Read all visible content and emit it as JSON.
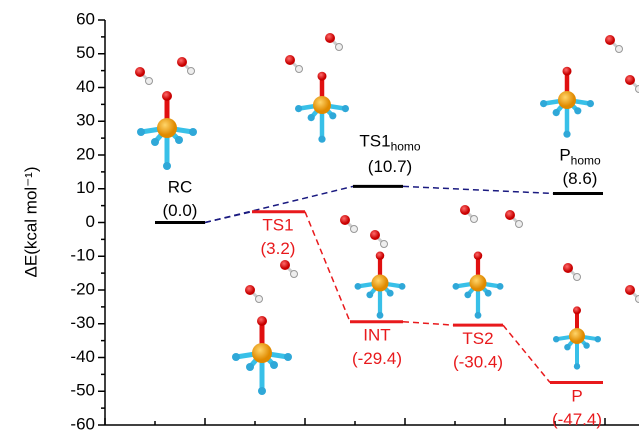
{
  "chart_data": {
    "type": "energy-profile",
    "y_label": "ΔE(kcal mol⁻¹)",
    "ylim": [
      -60,
      60
    ],
    "yticks": [
      -60,
      -50,
      -40,
      -30,
      -20,
      -10,
      0,
      10,
      20,
      30,
      40,
      50,
      60
    ],
    "levels": [
      {
        "label": "RC",
        "value": 0.0,
        "value_label": "(0.0)",
        "color": "#000000"
      },
      {
        "label": "TS1",
        "subscript": "homo",
        "value": 10.7,
        "value_label": "(10.7)",
        "color": "#000000"
      },
      {
        "label": "P",
        "subscript": "homo",
        "value": 8.6,
        "value_label": "(8.6)",
        "color": "#000000"
      },
      {
        "label": "TS1",
        "value": 3.2,
        "value_label": "(3.2)",
        "color": "#e8191c"
      },
      {
        "label": "INT",
        "value": -29.4,
        "value_label": "(-29.4)",
        "color": "#e8191c"
      },
      {
        "label": "TS2",
        "value": -30.4,
        "value_label": "(-30.4)",
        "color": "#e8191c"
      },
      {
        "label": "P",
        "value": -47.4,
        "value_label": "(-47.4)",
        "color": "#e8191c"
      }
    ]
  }
}
